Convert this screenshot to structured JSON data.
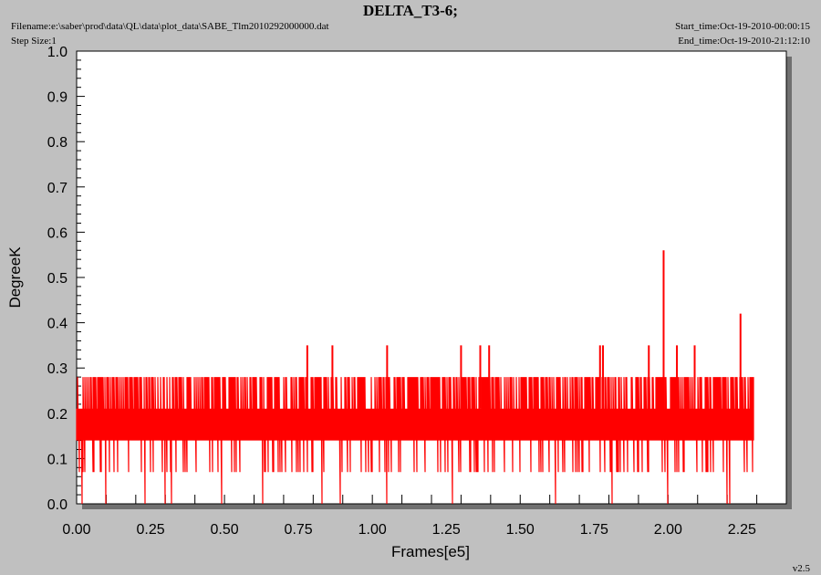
{
  "header": {
    "filename_label": "Filename:",
    "filename_value": "e:\\saber\\prod\\data\\QL\\data\\plot_data\\SABE_Tlm2010292000000.dat",
    "stepsize_label": "Step Size:",
    "stepsize_value": "1",
    "start_label": "Start_time:",
    "start_value": "Oct-19-2010-00:00:15",
    "end_label": "End_time:",
    "end_value": "Oct-19-2010-21:12:10",
    "version": "v2.5"
  },
  "colors": {
    "background": "#c0c0c0",
    "plot_area": "#ffffff",
    "series": "#ff0000",
    "shadow": "#707070"
  },
  "chart_data": {
    "type": "line",
    "title": "DELTA_T3-6;",
    "xlabel": "Frames[e5]",
    "ylabel": "DegreeK",
    "xlim": [
      0,
      2.4
    ],
    "ylim": [
      0,
      1.0
    ],
    "x_ticks": [
      "0.00",
      "0.25",
      "0.50",
      "0.75",
      "1.00",
      "1.25",
      "1.50",
      "1.75",
      "2.00",
      "2.25"
    ],
    "y_ticks": [
      "0.0",
      "0.1",
      "0.2",
      "0.3",
      "0.4",
      "0.5",
      "0.6",
      "0.7",
      "0.8",
      "0.9",
      "1.0"
    ],
    "grid": false,
    "series": [
      {
        "x_range": [
          0,
          2.29
        ],
        "levels": [
          0.07,
          0.14,
          0.21,
          0.28
        ],
        "low_dips_x": [
          0.02,
          0.1,
          0.23,
          0.3,
          0.32,
          0.49,
          0.63,
          0.83,
          0.89,
          1.05,
          1.27,
          1.62,
          1.81,
          2.0,
          2.2,
          2.21
        ],
        "spikes": [
          {
            "x": 0.78,
            "y": 0.35
          },
          {
            "x": 0.865,
            "y": 0.35
          },
          {
            "x": 1.05,
            "y": 0.35
          },
          {
            "x": 1.3,
            "y": 0.35
          },
          {
            "x": 1.365,
            "y": 0.35
          },
          {
            "x": 1.395,
            "y": 0.35
          },
          {
            "x": 1.77,
            "y": 0.35
          },
          {
            "x": 1.78,
            "y": 0.35
          },
          {
            "x": 1.935,
            "y": 0.35
          },
          {
            "x": 1.985,
            "y": 0.56
          },
          {
            "x": 2.03,
            "y": 0.35
          },
          {
            "x": 2.09,
            "y": 0.35
          },
          {
            "x": 2.245,
            "y": 0.42
          }
        ]
      }
    ]
  }
}
